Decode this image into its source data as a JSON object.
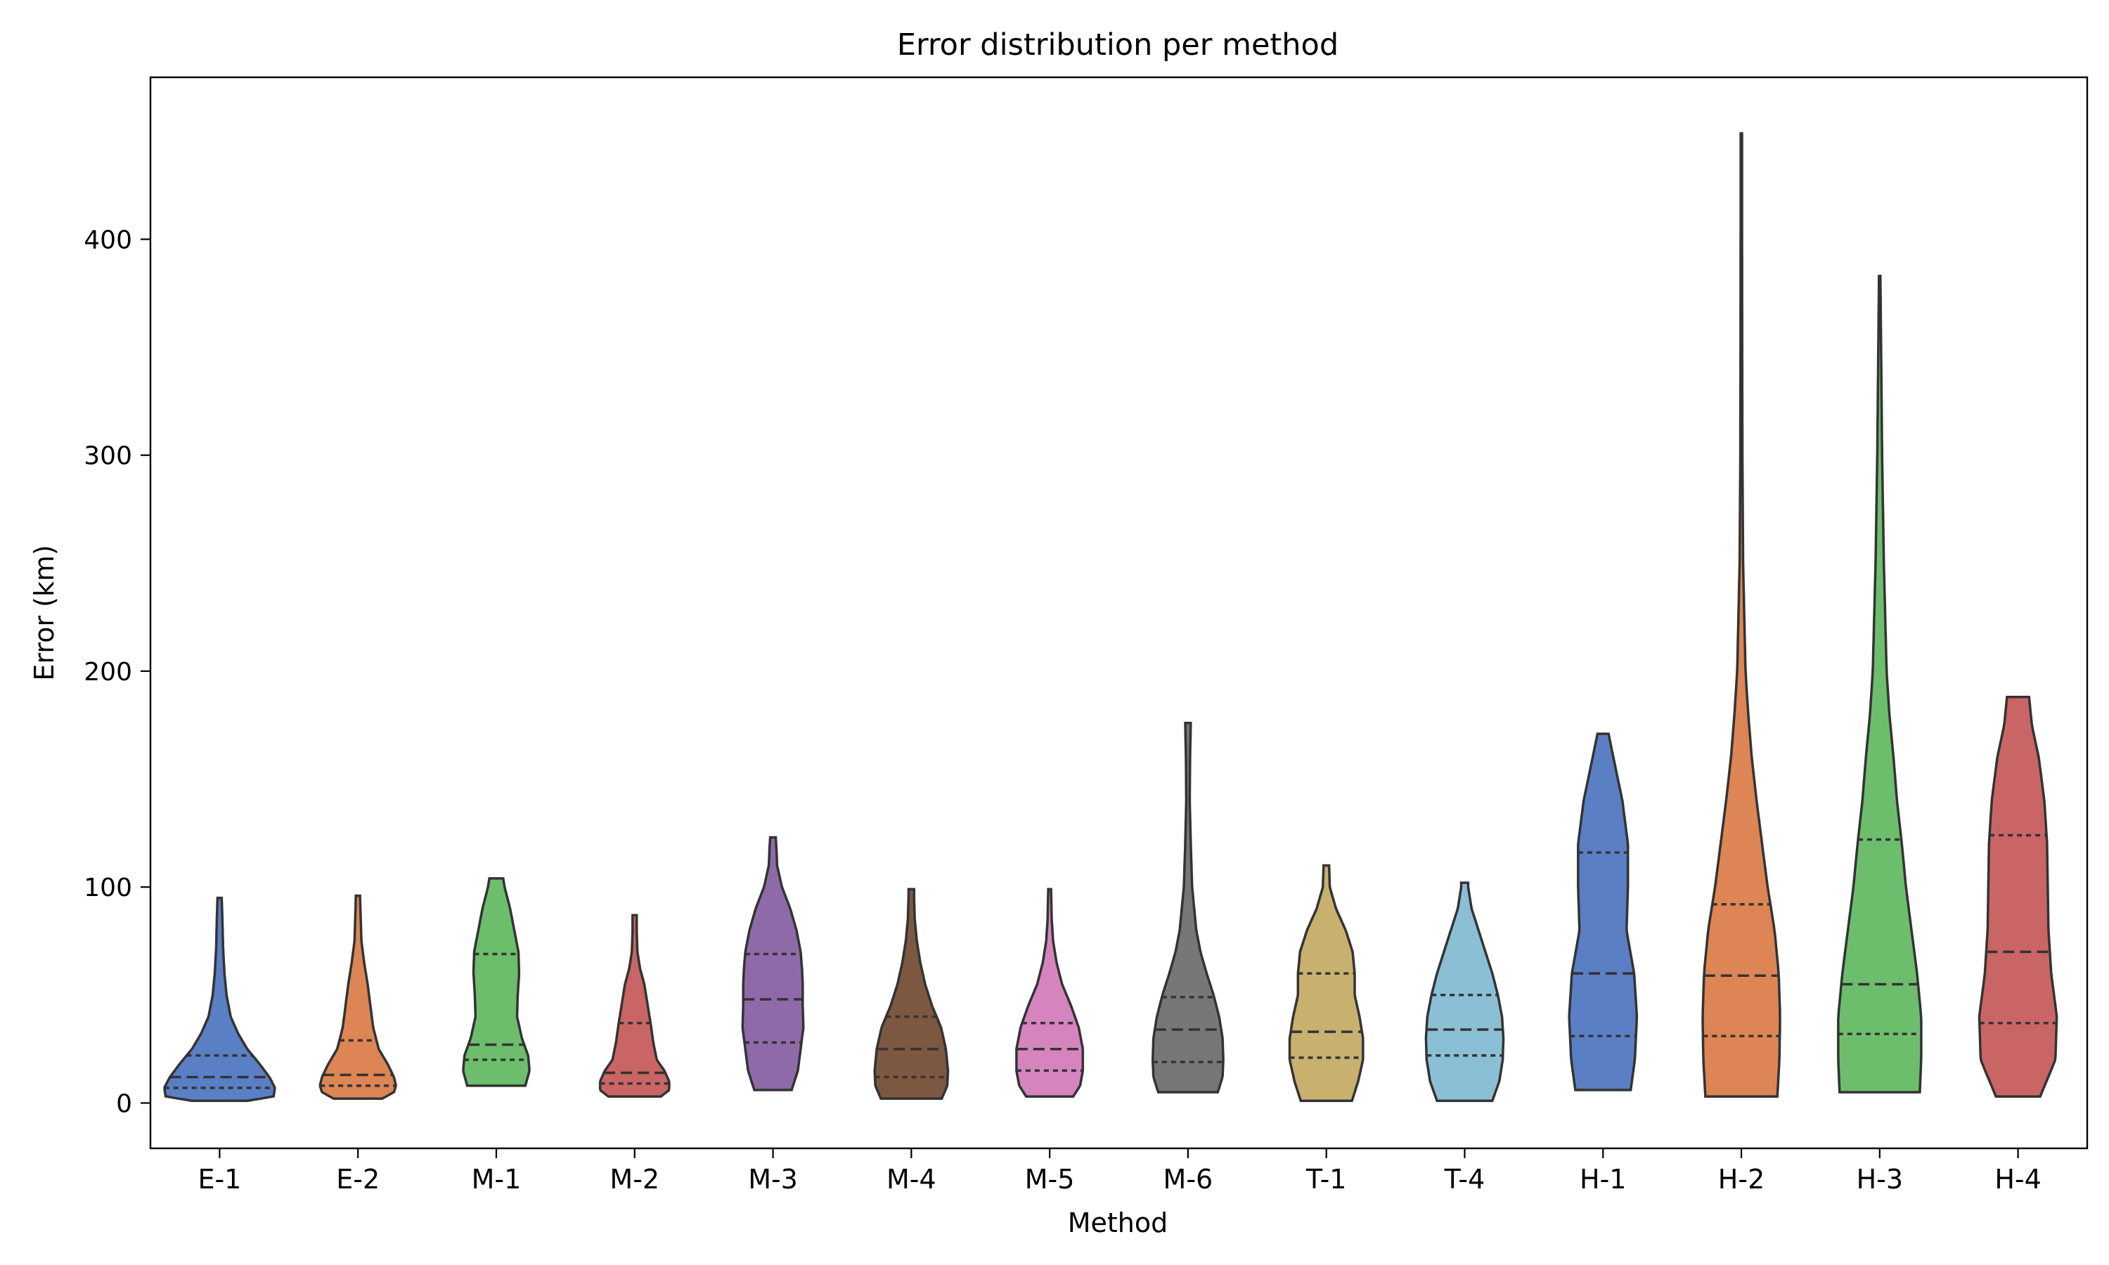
{
  "chart_data": {
    "type": "violin",
    "title": "Error distribution per method",
    "xlabel": "Method",
    "ylabel": "Error (km)",
    "ylim": [
      -21,
      475
    ],
    "yticks": [
      0,
      100,
      200,
      300,
      400
    ],
    "grid": false,
    "legend": "none",
    "series": [
      {
        "name": "E-1",
        "color": "#5a7fc4",
        "min": 1,
        "max": 95,
        "q1": 7,
        "median": 12,
        "q3": 22,
        "profile": [
          [
            1,
            0.4
          ],
          [
            3,
            0.78
          ],
          [
            7,
            0.8
          ],
          [
            12,
            0.72
          ],
          [
            18,
            0.58
          ],
          [
            25,
            0.4
          ],
          [
            32,
            0.27
          ],
          [
            40,
            0.16
          ],
          [
            50,
            0.1
          ],
          [
            60,
            0.07
          ],
          [
            72,
            0.05
          ],
          [
            85,
            0.04
          ],
          [
            95,
            0.03
          ]
        ]
      },
      {
        "name": "E-2",
        "color": "#dd8554",
        "min": 2,
        "max": 96,
        "q1": 8,
        "median": 13,
        "q3": 29,
        "profile": [
          [
            2,
            0.35
          ],
          [
            5,
            0.52
          ],
          [
            8,
            0.55
          ],
          [
            12,
            0.52
          ],
          [
            18,
            0.43
          ],
          [
            25,
            0.3
          ],
          [
            35,
            0.22
          ],
          [
            45,
            0.18
          ],
          [
            55,
            0.14
          ],
          [
            65,
            0.09
          ],
          [
            75,
            0.05
          ],
          [
            85,
            0.04
          ],
          [
            96,
            0.03
          ]
        ]
      },
      {
        "name": "M-1",
        "color": "#6cbe6c",
        "min": 8,
        "max": 104,
        "q1": 20,
        "median": 27,
        "q3": 69,
        "profile": [
          [
            8,
            0.42
          ],
          [
            15,
            0.48
          ],
          [
            22,
            0.46
          ],
          [
            30,
            0.37
          ],
          [
            40,
            0.3
          ],
          [
            50,
            0.31
          ],
          [
            60,
            0.33
          ],
          [
            70,
            0.32
          ],
          [
            80,
            0.26
          ],
          [
            90,
            0.2
          ],
          [
            100,
            0.12
          ],
          [
            104,
            0.1
          ]
        ]
      },
      {
        "name": "M-2",
        "color": "#c96665",
        "min": 3,
        "max": 87,
        "q1": 9,
        "median": 14,
        "q3": 37,
        "profile": [
          [
            3,
            0.38
          ],
          [
            6,
            0.5
          ],
          [
            10,
            0.5
          ],
          [
            15,
            0.43
          ],
          [
            20,
            0.32
          ],
          [
            28,
            0.27
          ],
          [
            37,
            0.23
          ],
          [
            45,
            0.19
          ],
          [
            55,
            0.14
          ],
          [
            62,
            0.08
          ],
          [
            70,
            0.04
          ],
          [
            80,
            0.03
          ],
          [
            87,
            0.03
          ]
        ]
      },
      {
        "name": "M-3",
        "color": "#8e6ba8",
        "min": 6,
        "max": 123,
        "q1": 28,
        "median": 48,
        "q3": 69,
        "profile": [
          [
            6,
            0.27
          ],
          [
            15,
            0.36
          ],
          [
            25,
            0.4
          ],
          [
            35,
            0.44
          ],
          [
            45,
            0.43
          ],
          [
            55,
            0.43
          ],
          [
            62,
            0.42
          ],
          [
            70,
            0.4
          ],
          [
            80,
            0.34
          ],
          [
            90,
            0.25
          ],
          [
            100,
            0.13
          ],
          [
            110,
            0.06
          ],
          [
            118,
            0.05
          ],
          [
            123,
            0.04
          ]
        ]
      },
      {
        "name": "M-4",
        "color": "#7c5840",
        "min": 2,
        "max": 99,
        "q1": 12,
        "median": 25,
        "q3": 40,
        "profile": [
          [
            2,
            0.44
          ],
          [
            8,
            0.52
          ],
          [
            15,
            0.53
          ],
          [
            25,
            0.5
          ],
          [
            35,
            0.43
          ],
          [
            45,
            0.3
          ],
          [
            55,
            0.2
          ],
          [
            65,
            0.13
          ],
          [
            75,
            0.08
          ],
          [
            85,
            0.05
          ],
          [
            95,
            0.04
          ],
          [
            99,
            0.04
          ]
        ]
      },
      {
        "name": "M-5",
        "color": "#d584be",
        "min": 3,
        "max": 99,
        "q1": 15,
        "median": 25,
        "q3": 37,
        "profile": [
          [
            3,
            0.34
          ],
          [
            8,
            0.44
          ],
          [
            15,
            0.48
          ],
          [
            25,
            0.48
          ],
          [
            35,
            0.42
          ],
          [
            45,
            0.31
          ],
          [
            55,
            0.18
          ],
          [
            65,
            0.1
          ],
          [
            75,
            0.05
          ],
          [
            85,
            0.03
          ],
          [
            99,
            0.02
          ]
        ]
      },
      {
        "name": "M-6",
        "color": "#777777",
        "min": 5,
        "max": 176,
        "q1": 19,
        "median": 34,
        "q3": 49,
        "profile": [
          [
            5,
            0.43
          ],
          [
            12,
            0.5
          ],
          [
            20,
            0.51
          ],
          [
            30,
            0.5
          ],
          [
            40,
            0.45
          ],
          [
            50,
            0.37
          ],
          [
            60,
            0.27
          ],
          [
            70,
            0.18
          ],
          [
            80,
            0.12
          ],
          [
            100,
            0.06
          ],
          [
            120,
            0.04
          ],
          [
            140,
            0.025
          ],
          [
            160,
            0.03
          ],
          [
            176,
            0.04
          ]
        ]
      },
      {
        "name": "T-1",
        "color": "#c8b06f",
        "min": 1,
        "max": 110,
        "q1": 21,
        "median": 33,
        "q3": 60,
        "profile": [
          [
            1,
            0.37
          ],
          [
            10,
            0.46
          ],
          [
            20,
            0.53
          ],
          [
            30,
            0.53
          ],
          [
            40,
            0.48
          ],
          [
            50,
            0.41
          ],
          [
            60,
            0.41
          ],
          [
            70,
            0.38
          ],
          [
            80,
            0.28
          ],
          [
            90,
            0.14
          ],
          [
            100,
            0.05
          ],
          [
            110,
            0.04
          ]
        ]
      },
      {
        "name": "T-4",
        "color": "#8bbfd6",
        "min": 1,
        "max": 102,
        "q1": 22,
        "median": 34,
        "q3": 50,
        "profile": [
          [
            1,
            0.4
          ],
          [
            10,
            0.5
          ],
          [
            20,
            0.55
          ],
          [
            30,
            0.56
          ],
          [
            40,
            0.54
          ],
          [
            50,
            0.48
          ],
          [
            60,
            0.4
          ],
          [
            70,
            0.3
          ],
          [
            80,
            0.2
          ],
          [
            90,
            0.1
          ],
          [
            100,
            0.05
          ],
          [
            102,
            0.05
          ]
        ]
      },
      {
        "name": "H-1",
        "color": "#5a7fc4",
        "min": 6,
        "max": 171,
        "q1": 31,
        "median": 60,
        "q3": 116,
        "profile": [
          [
            6,
            0.4
          ],
          [
            20,
            0.46
          ],
          [
            40,
            0.49
          ],
          [
            60,
            0.45
          ],
          [
            80,
            0.34
          ],
          [
            100,
            0.36
          ],
          [
            120,
            0.36
          ],
          [
            140,
            0.28
          ],
          [
            160,
            0.15
          ],
          [
            171,
            0.08
          ]
        ]
      },
      {
        "name": "H-2",
        "color": "#dd8554",
        "min": 3,
        "max": 449,
        "q1": 31,
        "median": 59,
        "q3": 92,
        "profile": [
          [
            3,
            0.52
          ],
          [
            20,
            0.55
          ],
          [
            40,
            0.56
          ],
          [
            60,
            0.54
          ],
          [
            80,
            0.48
          ],
          [
            100,
            0.38
          ],
          [
            120,
            0.3
          ],
          [
            140,
            0.22
          ],
          [
            160,
            0.15
          ],
          [
            180,
            0.1
          ],
          [
            200,
            0.06
          ],
          [
            250,
            0.025
          ],
          [
            300,
            0.015
          ],
          [
            350,
            0.012
          ],
          [
            400,
            0.01
          ],
          [
            449,
            0.01
          ]
        ]
      },
      {
        "name": "H-3",
        "color": "#6cbe6c",
        "min": 5,
        "max": 383,
        "q1": 32,
        "median": 55,
        "q3": 122,
        "profile": [
          [
            5,
            0.58
          ],
          [
            20,
            0.6
          ],
          [
            40,
            0.6
          ],
          [
            60,
            0.54
          ],
          [
            80,
            0.46
          ],
          [
            100,
            0.38
          ],
          [
            120,
            0.32
          ],
          [
            140,
            0.25
          ],
          [
            160,
            0.2
          ],
          [
            180,
            0.14
          ],
          [
            200,
            0.1
          ],
          [
            250,
            0.06
          ],
          [
            300,
            0.035
          ],
          [
            350,
            0.02
          ],
          [
            383,
            0.01
          ]
        ]
      },
      {
        "name": "H-4",
        "color": "#c96665",
        "min": 3,
        "max": 188,
        "q1": 37,
        "median": 70,
        "q3": 124,
        "profile": [
          [
            3,
            0.32
          ],
          [
            20,
            0.54
          ],
          [
            40,
            0.56
          ],
          [
            60,
            0.48
          ],
          [
            80,
            0.44
          ],
          [
            100,
            0.43
          ],
          [
            120,
            0.42
          ],
          [
            140,
            0.38
          ],
          [
            160,
            0.3
          ],
          [
            175,
            0.2
          ],
          [
            188,
            0.16
          ]
        ]
      }
    ]
  }
}
